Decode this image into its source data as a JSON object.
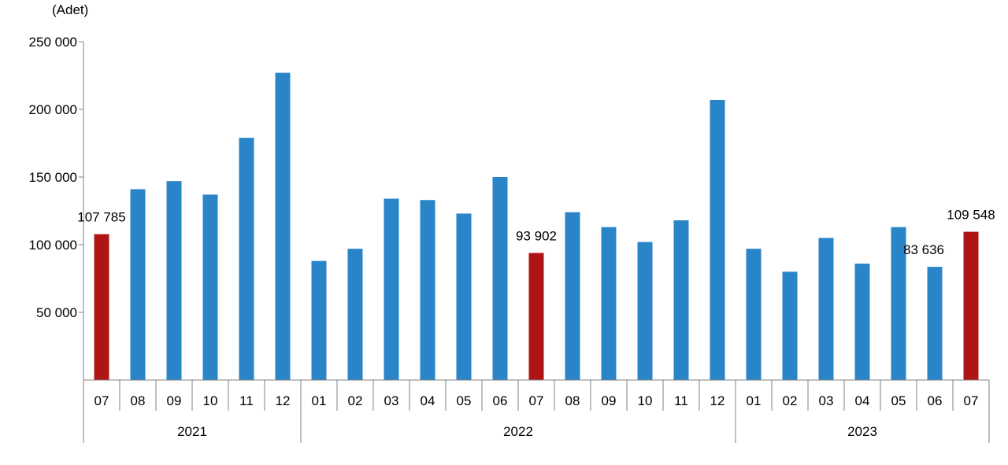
{
  "chart_data": {
    "type": "bar",
    "unit_label": "(Adet)",
    "ylim": [
      0,
      250000
    ],
    "y_ticks": [
      {
        "value": 50000,
        "label": "50 000"
      },
      {
        "value": 100000,
        "label": "100 000"
      },
      {
        "value": 150000,
        "label": "150 000"
      },
      {
        "value": 200000,
        "label": "200 000"
      },
      {
        "value": 250000,
        "label": "250 000"
      }
    ],
    "grid": false,
    "categories": [
      "07",
      "08",
      "09",
      "10",
      "11",
      "12",
      "01",
      "02",
      "03",
      "04",
      "05",
      "06",
      "07",
      "08",
      "09",
      "10",
      "11",
      "12",
      "01",
      "02",
      "03",
      "04",
      "05",
      "06",
      "07"
    ],
    "years": [
      {
        "label": "2021",
        "start": 0,
        "count": 6
      },
      {
        "label": "2022",
        "start": 6,
        "count": 12
      },
      {
        "label": "2023",
        "start": 18,
        "count": 7
      }
    ],
    "values": [
      107785,
      141000,
      147000,
      137000,
      179000,
      227000,
      88000,
      97000,
      134000,
      133000,
      123000,
      150000,
      93902,
      124000,
      113000,
      102000,
      118000,
      207000,
      97000,
      80000,
      105000,
      86000,
      113000,
      83636,
      109548
    ],
    "highlight_indices": [
      0,
      12,
      24
    ],
    "data_labels": [
      {
        "index": 0,
        "text": "107 785"
      },
      {
        "index": 12,
        "text": "93 902"
      },
      {
        "index": 23,
        "text": "83 636"
      },
      {
        "index": 24,
        "text": "109 548"
      }
    ],
    "colors": {
      "bar": "#2a84c8",
      "highlight": "#b01515",
      "axis": "#808080"
    }
  }
}
